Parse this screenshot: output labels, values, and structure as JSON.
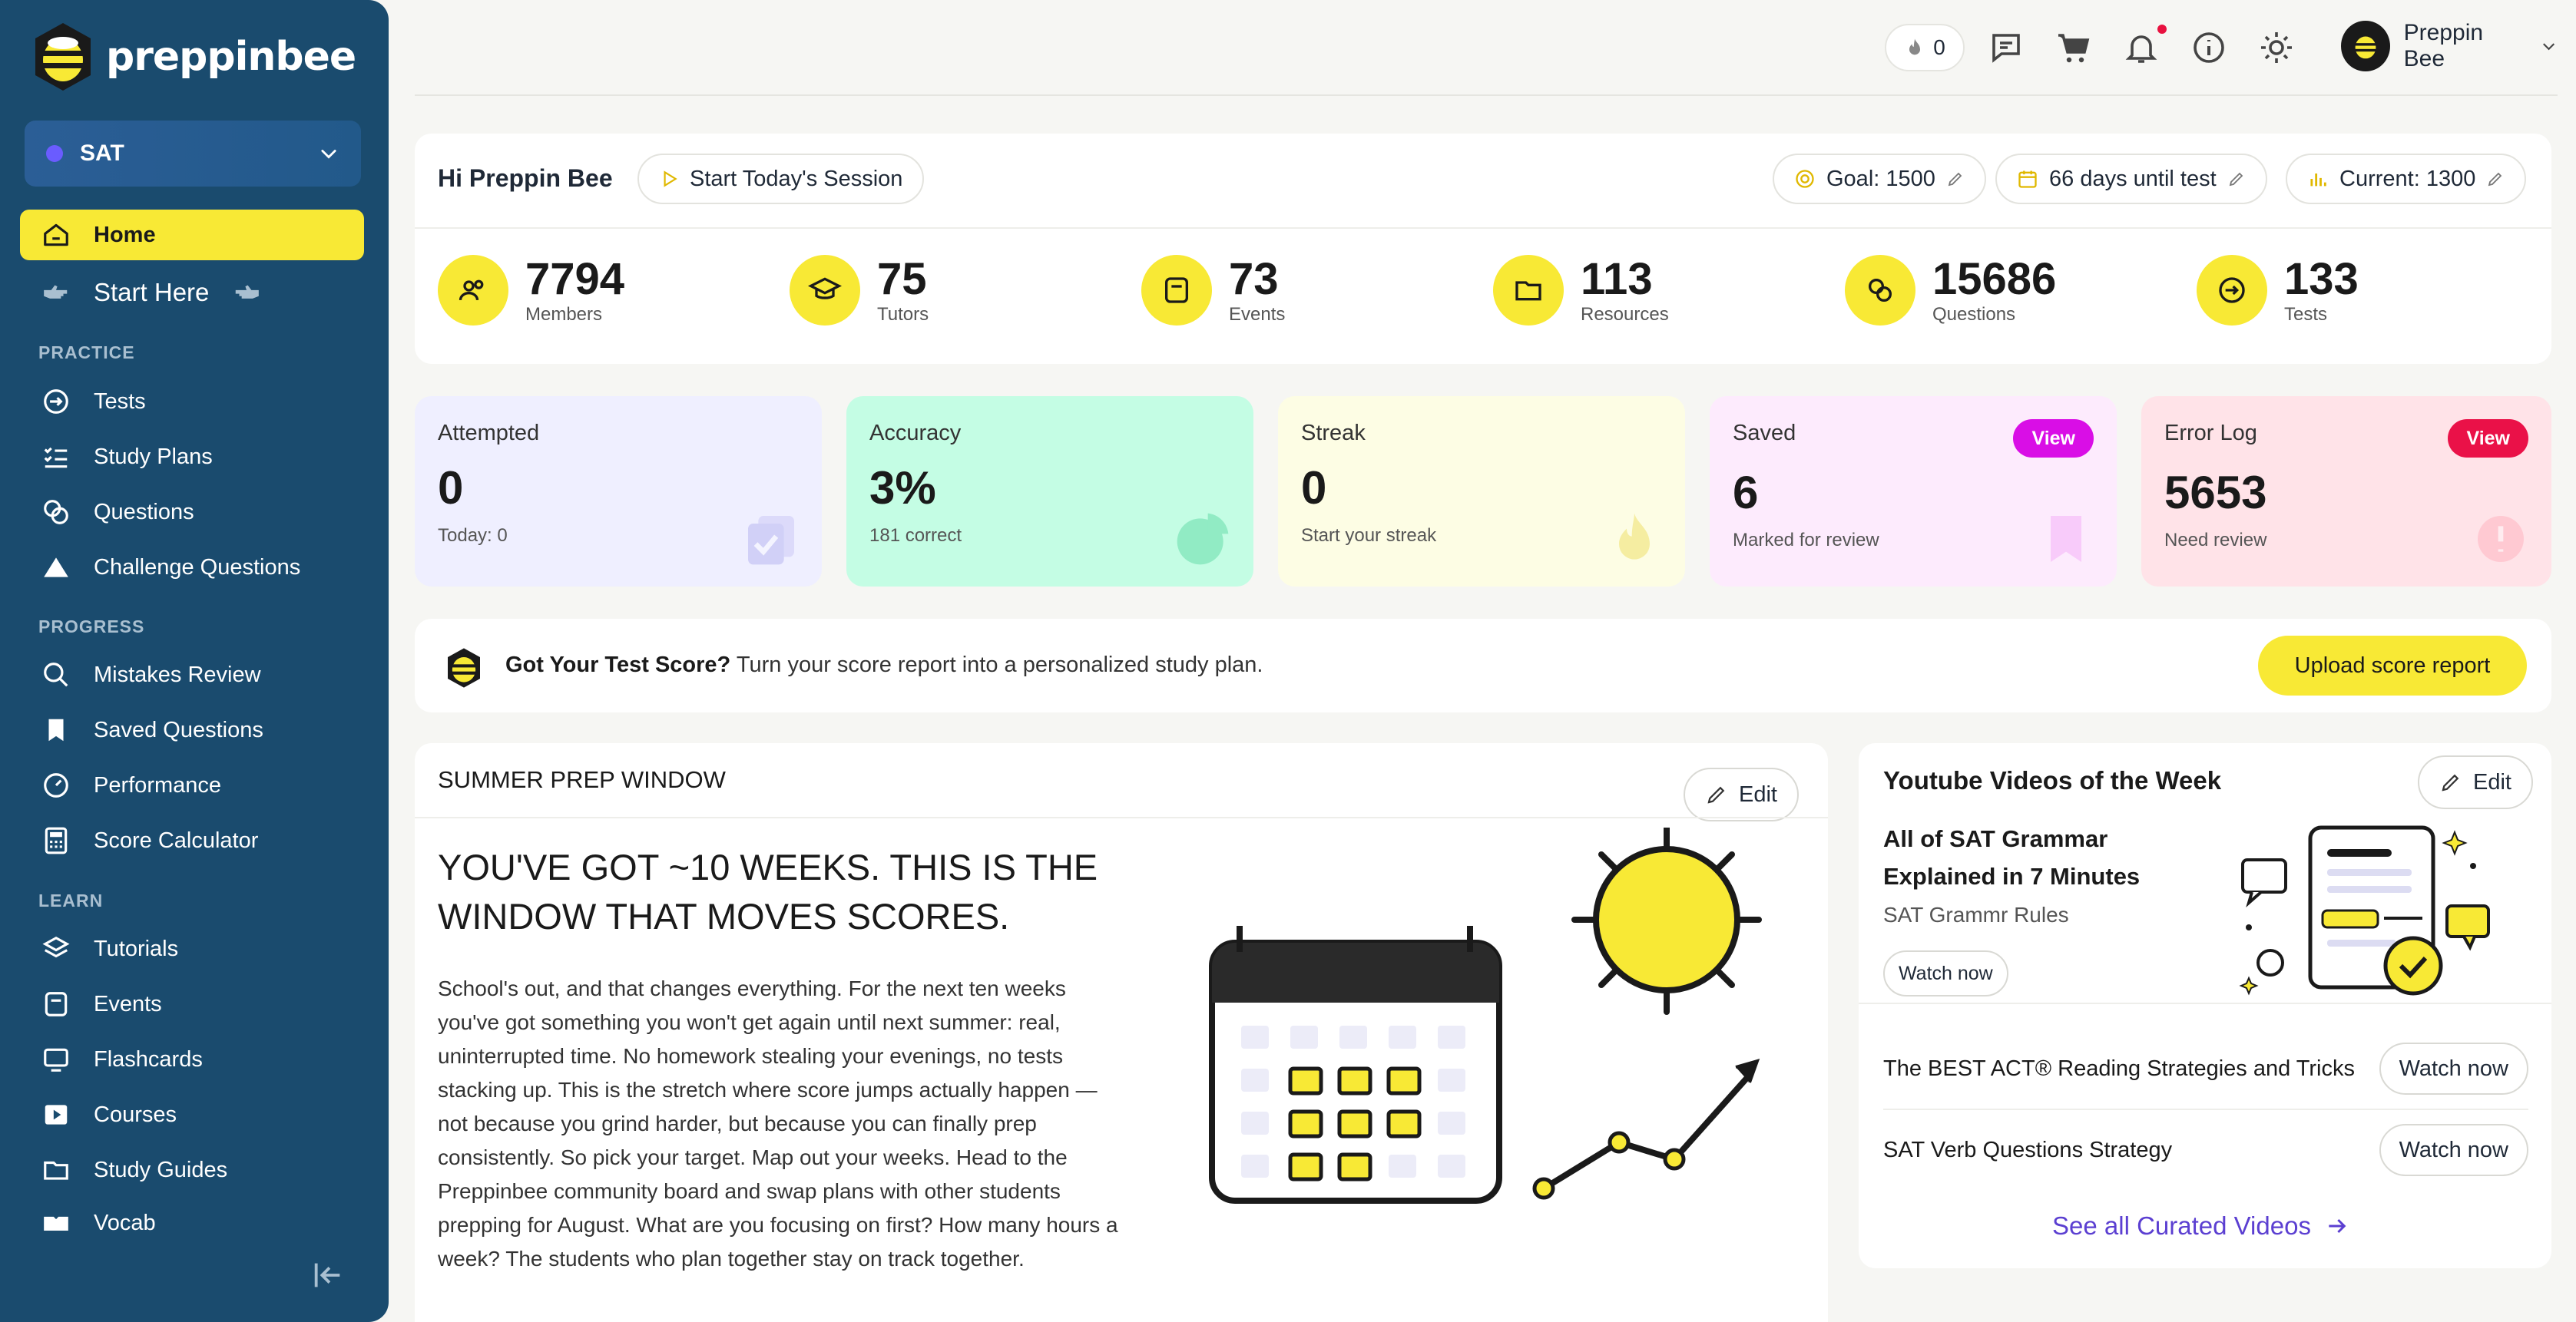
{
  "app": {
    "brand": "preppinbee"
  },
  "sidebar": {
    "exam": "SAT",
    "home": "Home",
    "start_here": "Start Here",
    "sections": {
      "practice": "PRACTICE",
      "progress": "PROGRESS",
      "learn": "LEARN"
    },
    "practice": [
      "Tests",
      "Study Plans",
      "Questions",
      "Challenge Questions"
    ],
    "progress": [
      "Mistakes Review",
      "Saved Questions",
      "Performance",
      "Score Calculator"
    ],
    "learn": [
      "Tutorials",
      "Events",
      "Flashcards",
      "Courses",
      "Study Guides",
      "Vocab"
    ]
  },
  "topbar": {
    "streak_count": "0",
    "user_name": "Preppin Bee"
  },
  "welcome": {
    "greeting": "Hi Preppin Bee",
    "start_session": "Start Today's Session",
    "goal": "Goal: 1500",
    "days_until_test": "66 days until test",
    "current": "Current: 1300"
  },
  "stats": [
    {
      "value": "7794",
      "label": "Members"
    },
    {
      "value": "75",
      "label": "Tutors"
    },
    {
      "value": "73",
      "label": "Events"
    },
    {
      "value": "113",
      "label": "Resources"
    },
    {
      "value": "15686",
      "label": "Questions"
    },
    {
      "value": "133",
      "label": "Tests"
    }
  ],
  "metrics": {
    "attempted": {
      "title": "Attempted",
      "value": "0",
      "sub": "Today: 0"
    },
    "accuracy": {
      "title": "Accuracy",
      "value": "3%",
      "sub": "181 correct"
    },
    "streak": {
      "title": "Streak",
      "value": "0",
      "sub": "Start your streak"
    },
    "saved": {
      "title": "Saved",
      "value": "6",
      "sub": "Marked for review",
      "badge": "View"
    },
    "error_log": {
      "title": "Error Log",
      "value": "5653",
      "sub": "Need review",
      "badge": "View"
    }
  },
  "colors": {
    "accent": "#f8e935",
    "sidebar": "#1a4b6e",
    "link": "#5b3fd1",
    "saved_badge": "#d90ee6",
    "error_badge": "#ea1148"
  },
  "banner": {
    "title": "Got Your Test Score?",
    "text": "Turn your score report into a personalized study plan.",
    "button": "Upload score report"
  },
  "prep": {
    "header": "SUMMER PREP WINDOW",
    "edit": "Edit",
    "title": "YOU'VE GOT ~10 WEEKS. THIS IS THE WINDOW THAT MOVES SCORES.",
    "body": "School's out, and that changes everything. For the next ten weeks you've got something you won't get again until next summer: real, uninterrupted time. No homework stealing your evenings, no tests stacking up. This is the stretch where score jumps actually happen — not because you grind harder, but because you can finally prep consistently. So pick your target. Map out your weeks. Head to the Preppinbee community board and swap plans with other students prepping for August. What are you focusing on first? How many hours a week? The students who plan together stay on track together."
  },
  "youtube": {
    "header": "Youtube Videos of the Week",
    "edit": "Edit",
    "featured": {
      "title": "All of SAT Grammar Explained in 7 Minutes",
      "sub": "SAT Grammr Rules",
      "button": "Watch now"
    },
    "items": [
      {
        "title": "The BEST ACT® Reading Strategies and Tricks",
        "button": "Watch now"
      },
      {
        "title": "SAT Verb Questions Strategy",
        "button": "Watch now"
      }
    ],
    "see_all": "See all Curated Videos"
  }
}
